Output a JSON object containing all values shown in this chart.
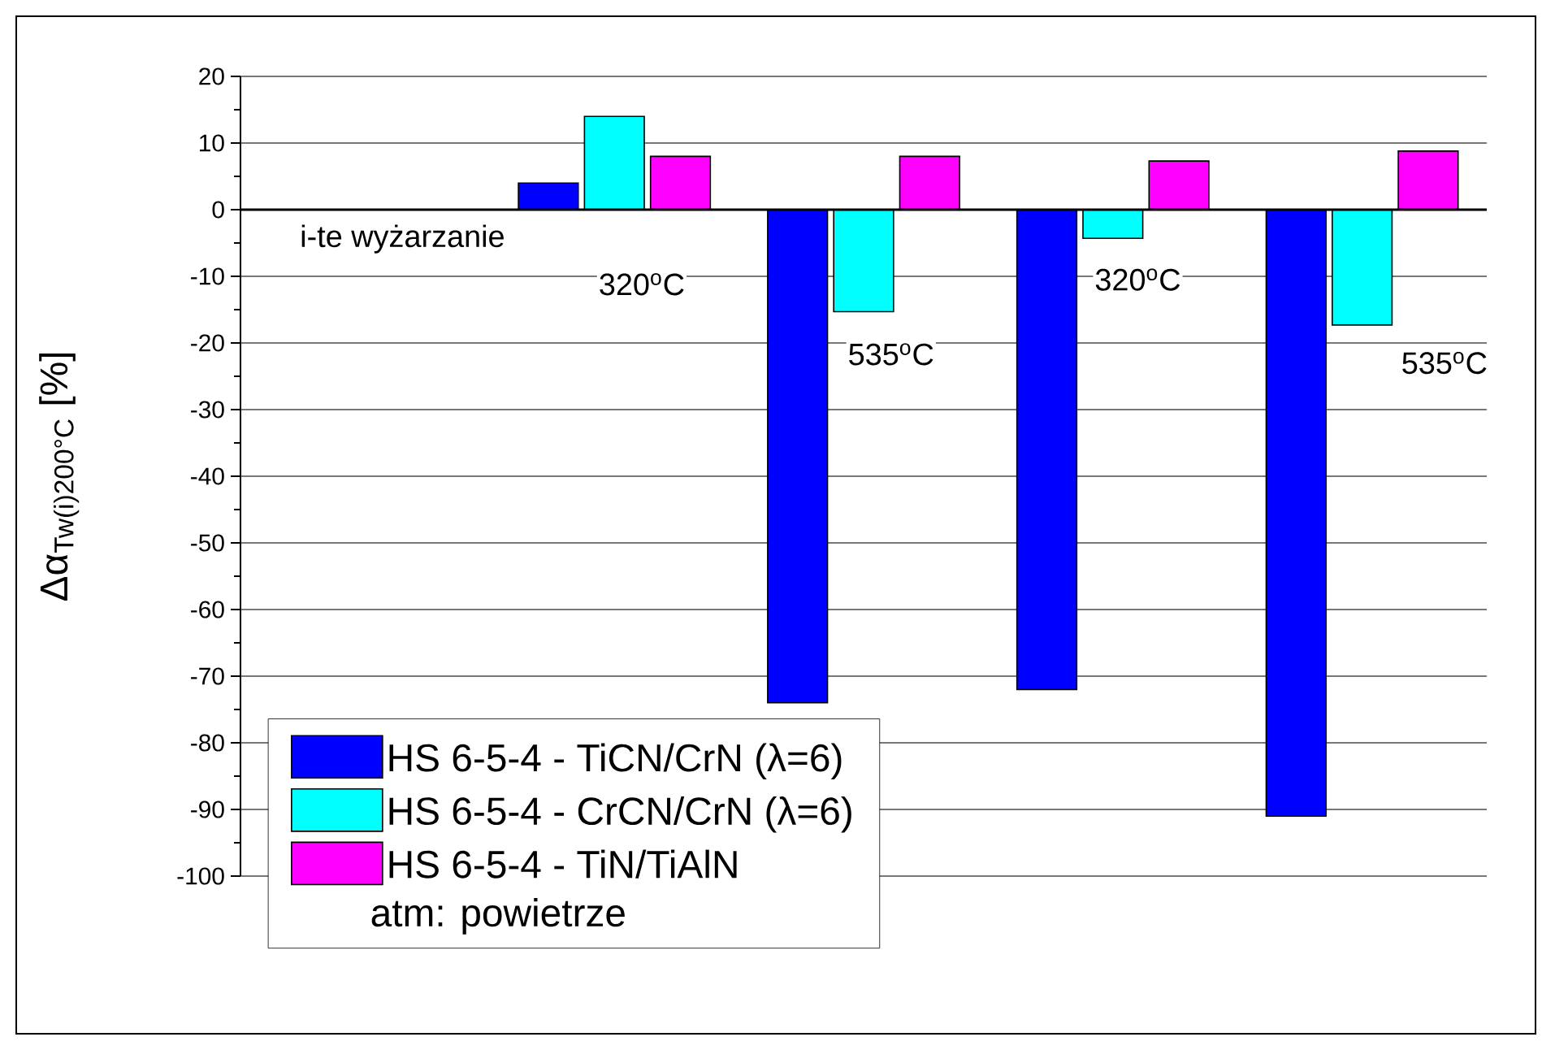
{
  "chart_data": {
    "type": "bar",
    "ylabel": "Δα$_{Tw(i)200°C}$   [%]",
    "categories": [
      "i-te wyżarzanie",
      "320$^{o}$C",
      "535$^{o}$C",
      "320$^{o}$C",
      "535$^{o}$C"
    ],
    "series": [
      {
        "name": "HS 6-5-4 - TiCN/CrN (λ=6)",
        "color": "#0000ff",
        "values": [
          null,
          4,
          -74,
          -72,
          -91
        ]
      },
      {
        "name": "HS 6-5-4 - CrCN/CrN (λ=6)",
        "color": "#00ffff",
        "values": [
          null,
          14,
          -15.3,
          -4.3,
          -17.3
        ]
      },
      {
        "name": "HS 6-5-4 - TiN/TiAlN",
        "color": "#ff00ff",
        "values": [
          null,
          8,
          8,
          7.3,
          8.8
        ]
      }
    ],
    "ylim": [
      -100,
      20
    ],
    "yticks": [
      -100,
      -90,
      -80,
      -70,
      -60,
      -50,
      -40,
      -30,
      -20,
      -10,
      0,
      10,
      20
    ],
    "grid": "y",
    "legend": "bottom left",
    "annotations": [
      "atm: powietrze"
    ]
  }
}
